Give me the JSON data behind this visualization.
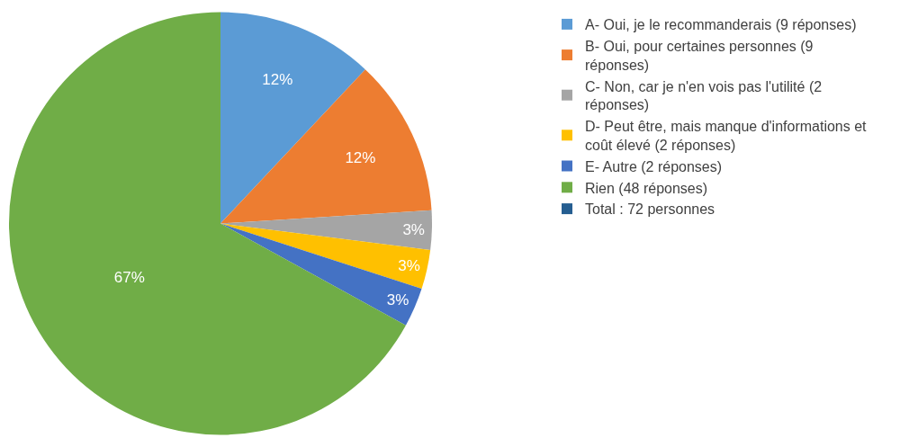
{
  "chart_data": {
    "type": "pie",
    "categories": [
      "A- Oui, je le recommanderais (9 réponses)",
      "B- Oui, pour certaines personnes (9 réponses)",
      "C- Non, car je n'en vois pas l'utilité (2 réponses)",
      "D- Peut être, mais manque d'informations et coût élevé (2 réponses)",
      "E- Autre (2 réponses)",
      "Rien (48 réponses)",
      "Total : 72 personnes"
    ],
    "values": [
      12,
      12,
      3,
      3,
      3,
      67,
      0
    ],
    "colors": [
      "#5b9bd5",
      "#ed7d31",
      "#a5a5a5",
      "#ffc000",
      "#4472c4",
      "#70ad47",
      "#255e91"
    ],
    "value_labels": [
      "12%",
      "12%",
      "3%",
      "3%",
      "3%",
      "67%",
      null
    ],
    "legend": "right"
  }
}
